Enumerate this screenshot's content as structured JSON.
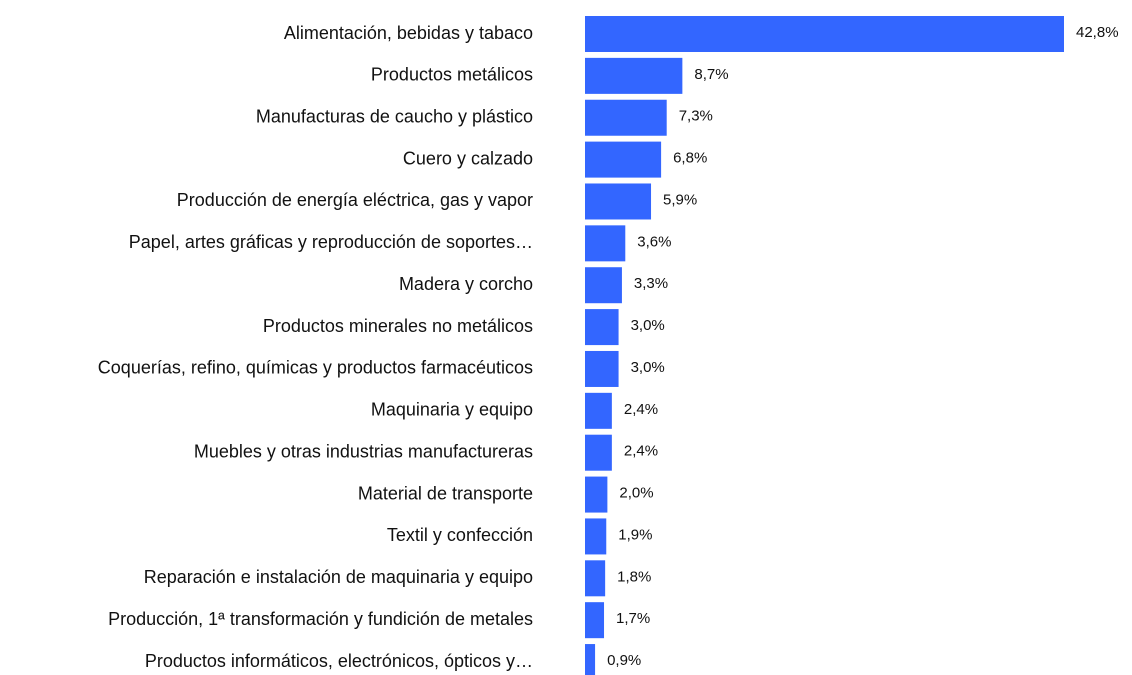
{
  "chart_data": {
    "type": "hbar",
    "categories": [
      "Alimentación, bebidas y tabaco",
      "Productos  metálicos",
      "Manufacturas de caucho y plástico",
      "Cuero y calzado",
      "Producción de energía eléctrica, gas y vapor",
      "Papel, artes gráficas y reproducción de soportes…",
      "Madera y corcho",
      "Productos minerales no metálicos",
      "Coquerías, refino, químicas y productos farmacéuticos",
      "Maquinaria y equipo",
      "Muebles y otras industrias manufactureras",
      "Material de transporte",
      "Textil y confección",
      "Reparación e instalación de maquinaria y equipo",
      "Producción, 1ª transformación y fundición de metales",
      "Productos informáticos, electrónicos, ópticos y…"
    ],
    "values": [
      42.8,
      8.7,
      7.3,
      6.8,
      5.9,
      3.6,
      3.3,
      3.0,
      3.0,
      2.4,
      2.4,
      2.0,
      1.9,
      1.8,
      1.7,
      0.9
    ],
    "value_labels": [
      "42,8%",
      "8,7%",
      "7,3%",
      "6,8%",
      "5,9%",
      "3,6%",
      "3,3%",
      "3,0%",
      "3,0%",
      "2,4%",
      "2,4%",
      "2,0%",
      "1,9%",
      "1,8%",
      "1,7%",
      "0,9%"
    ],
    "color": "#3366ff"
  }
}
